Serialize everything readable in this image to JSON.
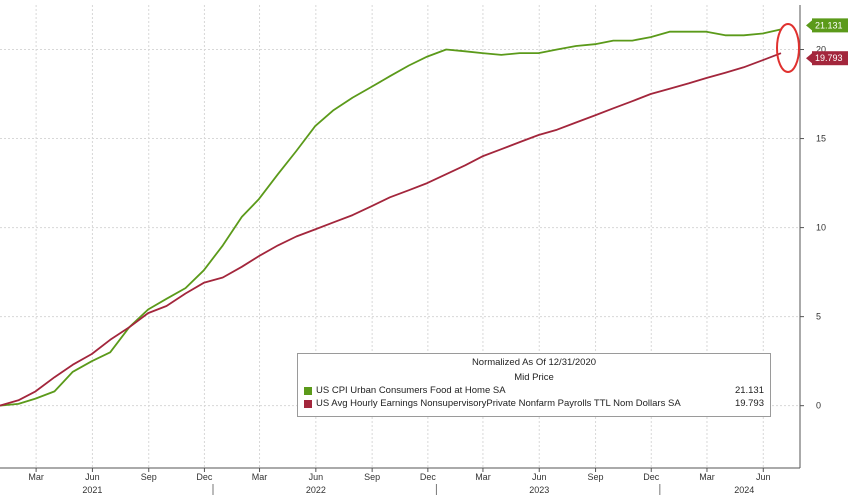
{
  "chart_data": {
    "type": "line",
    "title": "",
    "legend_title": "Normalized As Of 12/31/2020",
    "legend_subtitle": "Mid Price",
    "legend_position": "bottom-right",
    "grid": true,
    "ylim": [
      -3.5,
      22.5
    ],
    "yticks": [
      0,
      5,
      10,
      15,
      20
    ],
    "x_start": "2021-01-01",
    "x_end": "2024-07-31",
    "x_ticks": [
      {
        "date": "2021-03-01",
        "label": "Mar"
      },
      {
        "date": "2021-06-01",
        "label": "Jun"
      },
      {
        "date": "2021-09-01",
        "label": "Sep"
      },
      {
        "date": "2021-12-01",
        "label": "Dec"
      },
      {
        "date": "2022-03-01",
        "label": "Mar"
      },
      {
        "date": "2022-06-01",
        "label": "Jun"
      },
      {
        "date": "2022-09-01",
        "label": "Sep"
      },
      {
        "date": "2022-12-01",
        "label": "Dec"
      },
      {
        "date": "2023-03-01",
        "label": "Mar"
      },
      {
        "date": "2023-06-01",
        "label": "Jun"
      },
      {
        "date": "2023-09-01",
        "label": "Sep"
      },
      {
        "date": "2023-12-01",
        "label": "Dec"
      },
      {
        "date": "2024-03-01",
        "label": "Mar"
      },
      {
        "date": "2024-06-01",
        "label": "Jun"
      }
    ],
    "years": [
      {
        "date": "2021-06-01",
        "label": "2021"
      },
      {
        "date": "2022-06-01",
        "label": "2022"
      },
      {
        "date": "2023-06-01",
        "label": "2023"
      },
      {
        "date": "2024-05-01",
        "label": "2024"
      }
    ],
    "x": [
      "2020-12-31",
      "2021-01-31",
      "2021-02-28",
      "2021-03-31",
      "2021-04-30",
      "2021-05-31",
      "2021-06-30",
      "2021-07-31",
      "2021-08-31",
      "2021-09-30",
      "2021-10-31",
      "2021-11-30",
      "2021-12-31",
      "2022-01-31",
      "2022-02-28",
      "2022-03-31",
      "2022-04-30",
      "2022-05-31",
      "2022-06-30",
      "2022-07-31",
      "2022-08-31",
      "2022-09-30",
      "2022-10-31",
      "2022-11-30",
      "2022-12-31",
      "2023-01-31",
      "2023-02-28",
      "2023-03-31",
      "2023-04-30",
      "2023-05-31",
      "2023-06-30",
      "2023-07-31",
      "2023-08-31",
      "2023-09-30",
      "2023-10-31",
      "2023-11-30",
      "2023-12-31",
      "2024-01-31",
      "2024-02-29",
      "2024-03-31",
      "2024-04-30",
      "2024-05-31",
      "2024-06-30"
    ],
    "series": [
      {
        "name": "US CPI Urban Consumers Food at Home SA",
        "color": "#5b9a1a",
        "last_value": "21.131",
        "values": [
          0,
          0.1,
          0.4,
          0.8,
          1.9,
          2.5,
          3.0,
          4.4,
          5.4,
          6.0,
          6.6,
          7.6,
          9.0,
          10.6,
          11.6,
          13.0,
          14.3,
          15.7,
          16.6,
          17.3,
          17.9,
          18.5,
          19.1,
          19.6,
          20.0,
          19.9,
          19.8,
          19.7,
          19.8,
          19.8,
          20.0,
          20.2,
          20.3,
          20.5,
          20.5,
          20.7,
          21.0,
          21.0,
          21.0,
          20.8,
          20.8,
          20.9,
          21.131
        ]
      },
      {
        "name": "US Avg Hourly Earnings NonsupervisoryPrivate Nonfarm Payrolls TTL Nom Dollars SA",
        "color": "#a3263c",
        "last_value": "19.793",
        "values": [
          0,
          0.3,
          0.8,
          1.6,
          2.3,
          2.9,
          3.7,
          4.4,
          5.2,
          5.6,
          6.3,
          6.9,
          7.2,
          7.8,
          8.4,
          9.0,
          9.5,
          9.9,
          10.3,
          10.7,
          11.2,
          11.7,
          12.1,
          12.5,
          13.0,
          13.5,
          14.0,
          14.4,
          14.8,
          15.2,
          15.5,
          15.9,
          16.3,
          16.7,
          17.1,
          17.5,
          17.8,
          18.1,
          18.4,
          18.7,
          19.0,
          19.4,
          19.793
        ]
      }
    ]
  },
  "colors": {
    "background": "#ffffff",
    "grid": "#d8d8d8",
    "highlight_circle": "#e0312f"
  }
}
